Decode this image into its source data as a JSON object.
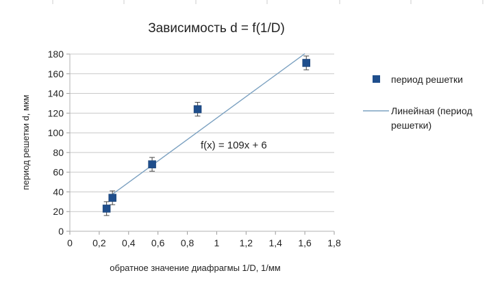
{
  "chart_data": {
    "type": "scatter",
    "title": "Зависимость d = f(1/D)",
    "xlabel": "обратное значение диафрагмы 1/D, 1/мм",
    "ylabel": "период решетки d, мкм",
    "xlim": [
      0,
      1.8
    ],
    "ylim": [
      0,
      180
    ],
    "x_ticks": [
      "0",
      "0,2",
      "0,4",
      "0,6",
      "0,8",
      "1",
      "1,2",
      "1,4",
      "1,6",
      "1,8"
    ],
    "y_ticks": [
      "0",
      "20",
      "40",
      "60",
      "80",
      "100",
      "120",
      "140",
      "160",
      "180"
    ],
    "grid": "horizontal",
    "series": [
      {
        "name": "период решетки",
        "marker": "square",
        "color": "#1f4e8c",
        "points": [
          {
            "x": 0.25,
            "y": 23,
            "err": 7
          },
          {
            "x": 0.29,
            "y": 34,
            "err": 7
          },
          {
            "x": 0.56,
            "y": 68,
            "err": 7
          },
          {
            "x": 0.87,
            "y": 124,
            "err": 7
          },
          {
            "x": 1.61,
            "y": 171,
            "err": 7
          }
        ]
      }
    ],
    "trendline": {
      "name": "Линейная (период решетки)",
      "legend_lines": [
        "Линейная (период",
        "решетки)"
      ],
      "color": "#7aa0c0",
      "slope": 109,
      "intercept": 6,
      "x_range": [
        0.28,
        1.6
      ],
      "equation": "f(x) = 109x + 6"
    },
    "legend": "right"
  }
}
